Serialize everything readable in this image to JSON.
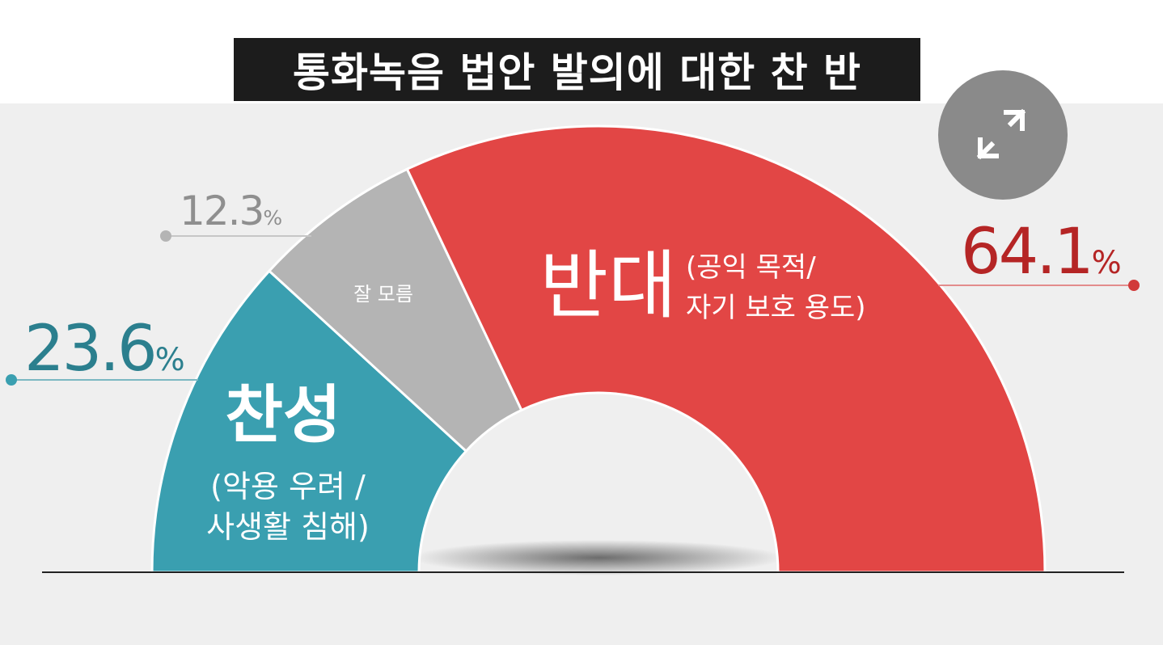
{
  "title": "통화녹음 법안 발의에 대한 찬 반",
  "expand_button": {
    "icon": "expand-arrows-icon"
  },
  "colors": {
    "favor": "#3a9fb0",
    "unsure": "#b4b4b4",
    "oppose": "#e24645",
    "favor_text": "#2b7f8e",
    "unsure_text": "#8f8f8f",
    "oppose_text": "#b52525",
    "background": "#efefef"
  },
  "chart_data": {
    "type": "pie",
    "variant": "semicircle-donut",
    "categories": [
      "찬성",
      "잘 모름",
      "반대"
    ],
    "values": [
      23.6,
      12.3,
      64.1
    ],
    "value_labels": [
      "23.6%",
      "12.3%",
      "64.1%"
    ],
    "slices": [
      {
        "label": "찬성",
        "note_lines": [
          "(악용 우려 /",
          "사생활 침해)"
        ],
        "value": 23.6,
        "value_text": "23.6%"
      },
      {
        "label": "잘 모름",
        "note_lines": [],
        "value": 12.3,
        "value_text": "12.3%"
      },
      {
        "label": "반대",
        "note_lines": [
          "(공익 목적/",
          "자기 보호 용도)"
        ],
        "value": 64.1,
        "value_text": "64.1%"
      }
    ],
    "title": "통화녹음 법안 발의에 대한 찬 반"
  }
}
